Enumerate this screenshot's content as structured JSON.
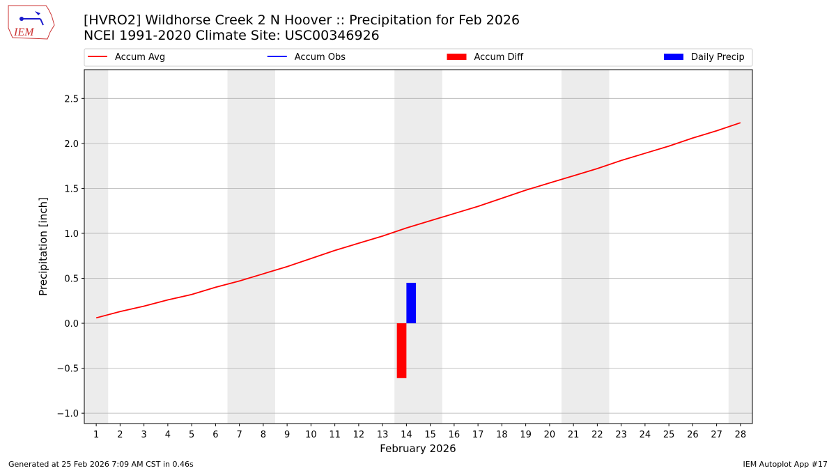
{
  "logo_text": "IEM",
  "footer": {
    "left": "Generated at 25 Feb 2026 7:09 AM CST in 0.46s",
    "right": "IEM Autoplot App #17"
  },
  "chart_data": {
    "type": "combo",
    "title": "[HVRO2] Wildhorse Creek 2 N Hoover :: Precipitation for Feb 2026",
    "subtitle": "NCEI 1991-2020 Climate Site: USC00346926",
    "x_label": "February 2026",
    "y_label": "Precipitation [inch]",
    "x": [
      1,
      2,
      3,
      4,
      5,
      6,
      7,
      8,
      9,
      10,
      11,
      12,
      13,
      14,
      15,
      16,
      17,
      18,
      19,
      20,
      21,
      22,
      23,
      24,
      25,
      26,
      27,
      28
    ],
    "series": [
      {
        "name": "Accum Avg",
        "type": "line",
        "color": "#ff0000",
        "values": [
          0.06,
          0.13,
          0.19,
          0.26,
          0.32,
          0.4,
          0.47,
          0.55,
          0.63,
          0.72,
          0.81,
          0.89,
          0.97,
          1.06,
          1.14,
          1.22,
          1.3,
          1.39,
          1.48,
          1.56,
          1.64,
          1.72,
          1.81,
          1.89,
          1.97,
          2.06,
          2.14,
          2.23
        ]
      },
      {
        "name": "Accum Obs",
        "type": "line",
        "color": "#0000ff",
        "values": [
          null,
          null,
          null,
          null,
          null,
          null,
          null,
          null,
          null,
          null,
          null,
          null,
          null,
          null,
          null,
          null,
          null,
          null,
          null,
          null,
          null,
          null,
          null,
          null,
          null,
          null,
          null,
          null
        ]
      },
      {
        "name": "Accum Diff",
        "type": "bar",
        "color": "#ff0000",
        "values": [
          null,
          null,
          null,
          null,
          null,
          null,
          null,
          null,
          null,
          null,
          null,
          null,
          null,
          -0.61,
          null,
          null,
          null,
          null,
          null,
          null,
          null,
          null,
          null,
          null,
          null,
          null,
          null,
          null
        ]
      },
      {
        "name": "Daily Precip",
        "type": "bar",
        "color": "#0000ff",
        "values": [
          null,
          null,
          null,
          null,
          null,
          null,
          null,
          null,
          null,
          null,
          null,
          null,
          null,
          0.45,
          null,
          null,
          null,
          null,
          null,
          null,
          null,
          null,
          null,
          null,
          null,
          null,
          null,
          null
        ]
      }
    ],
    "shaded_ranges": [
      [
        0.5,
        1.5
      ],
      [
        6.5,
        8.5
      ],
      [
        13.5,
        15.5
      ],
      [
        20.5,
        22.5
      ],
      [
        27.5,
        28.5
      ]
    ],
    "shade_color": "#ececec",
    "xlim": [
      0.5,
      28.5
    ],
    "ylim": [
      -1.115,
      2.82
    ],
    "xticks": [
      1,
      2,
      3,
      4,
      5,
      6,
      7,
      8,
      9,
      10,
      11,
      12,
      13,
      14,
      15,
      16,
      17,
      18,
      19,
      20,
      21,
      22,
      23,
      24,
      25,
      26,
      27,
      28
    ],
    "yticks": [
      {
        "value": -1,
        "label": "−1.0"
      },
      {
        "value": -0.5,
        "label": "−0.5"
      },
      {
        "value": 0,
        "label": "0.0"
      },
      0.5,
      {
        "value": 1,
        "label": "1.0"
      },
      1.5,
      {
        "value": 2,
        "label": "2.0"
      },
      2.5
    ],
    "grid": "y",
    "legend": "top"
  }
}
